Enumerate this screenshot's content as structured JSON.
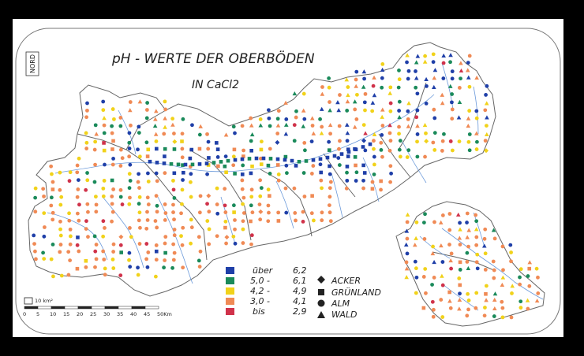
{
  "map": {
    "title": "pH - WERTE DER OBERBÖDEN",
    "subtitle": "IN CaCl2",
    "north_label": "NORD"
  },
  "colors": {
    "background": "#000000",
    "paper": "#ffffff",
    "outline": "#555555",
    "rivers": "#5b8fd6",
    "ph_high": "#1f3fa8",
    "ph_mid_high": "#1a8a5a",
    "ph_mid": "#f1d21a",
    "ph_low": "#f08a55",
    "ph_very_low": "#d0324a"
  },
  "legend": {
    "ph_classes": [
      {
        "label": "über",
        "value": "6,2",
        "color_key": "ph_high"
      },
      {
        "label": "5,0  -",
        "value": "6,1",
        "color_key": "ph_mid_high"
      },
      {
        "label": "4,2  -",
        "value": "4,9",
        "color_key": "ph_mid"
      },
      {
        "label": "3,0  -",
        "value": "4,1",
        "color_key": "ph_low"
      },
      {
        "label": "bis",
        "value": "2,9",
        "color_key": "ph_very_low"
      }
    ],
    "land_use": [
      {
        "label": "ACKER",
        "icon": "diamond-icon"
      },
      {
        "label": "GRÜNLAND",
        "icon": "square-icon"
      },
      {
        "label": "ALM",
        "icon": "circle-icon"
      },
      {
        "label": "WALD",
        "icon": "triangle-icon"
      }
    ]
  },
  "scale_bar": {
    "area_label": "10 km²",
    "ticks": [
      "0",
      "5",
      "10",
      "15",
      "20",
      "25",
      "30",
      "35",
      "40",
      "45",
      "50Km"
    ]
  }
}
